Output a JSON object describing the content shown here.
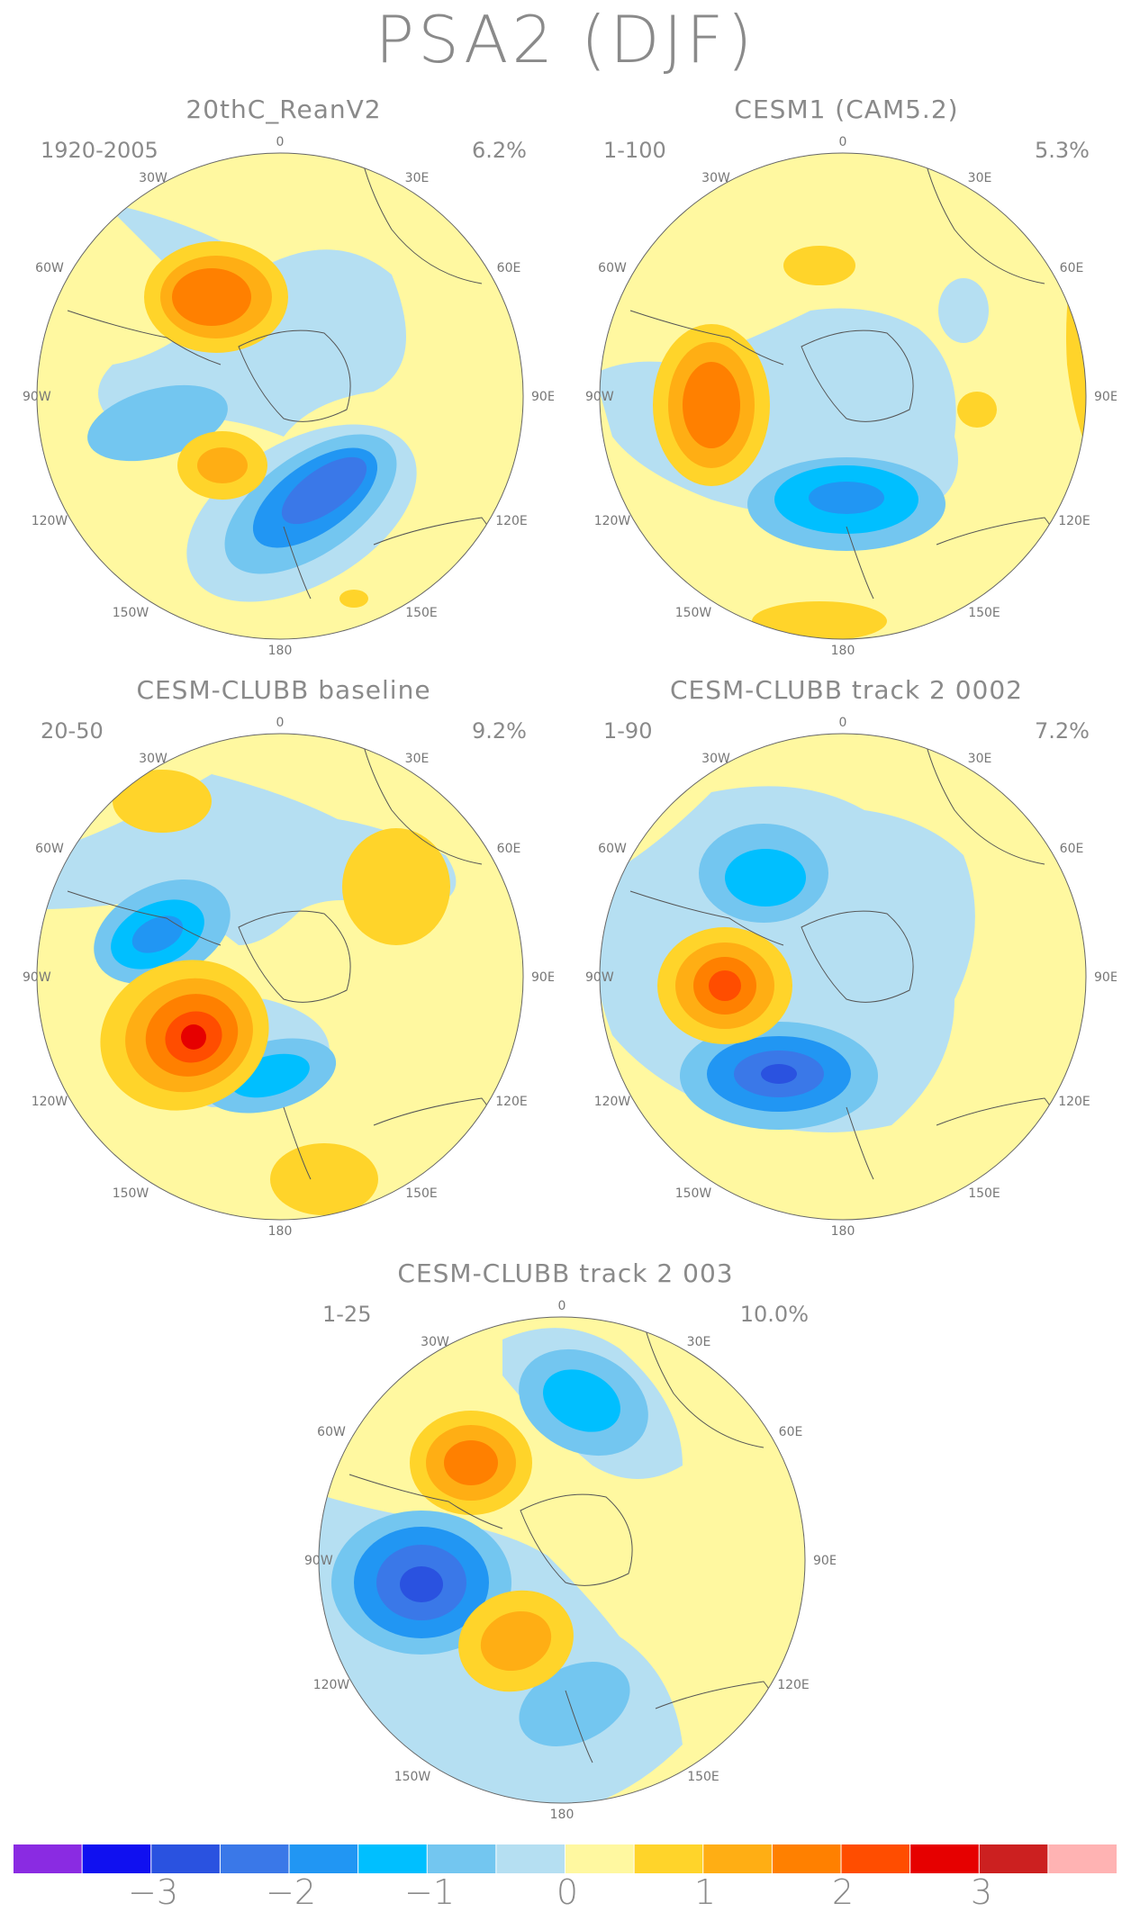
{
  "title": "PSA2 (DJF)",
  "panels": [
    {
      "name": "20thC_ReanV2",
      "period": "1920-2005",
      "variance": "6.2%"
    },
    {
      "name": "CESM1 (CAM5.2)",
      "period": "1-100",
      "variance": "5.3%"
    },
    {
      "name": "CESM-CLUBB baseline",
      "period": "20-50",
      "variance": "9.2%"
    },
    {
      "name": "CESM-CLUBB track 2 0002",
      "period": "1-90",
      "variance": "7.2%"
    },
    {
      "name": "CESM-CLUBB track 2 003",
      "period": "1-25",
      "variance": "10.0%"
    }
  ],
  "longitude_labels": {
    "top": "0",
    "bottom": "180",
    "left": [
      "30W",
      "60W",
      "90W",
      "120W",
      "150W"
    ],
    "right": [
      "30E",
      "60E",
      "90E",
      "120E",
      "150E"
    ]
  },
  "colorbar": {
    "colors": [
      "#8a2be2",
      "#1010f0",
      "#2a52e0",
      "#3a78e8",
      "#2196f3",
      "#00bfff",
      "#73c6f0",
      "#b5dff2",
      "#fff8a0",
      "#ffd42a",
      "#ffae14",
      "#ff8000",
      "#ff4d00",
      "#e60000",
      "#cc2020",
      "#ffb3b3"
    ],
    "labels": [
      "−3",
      "−2",
      "−1",
      "0",
      "1",
      "2",
      "3"
    ]
  }
}
